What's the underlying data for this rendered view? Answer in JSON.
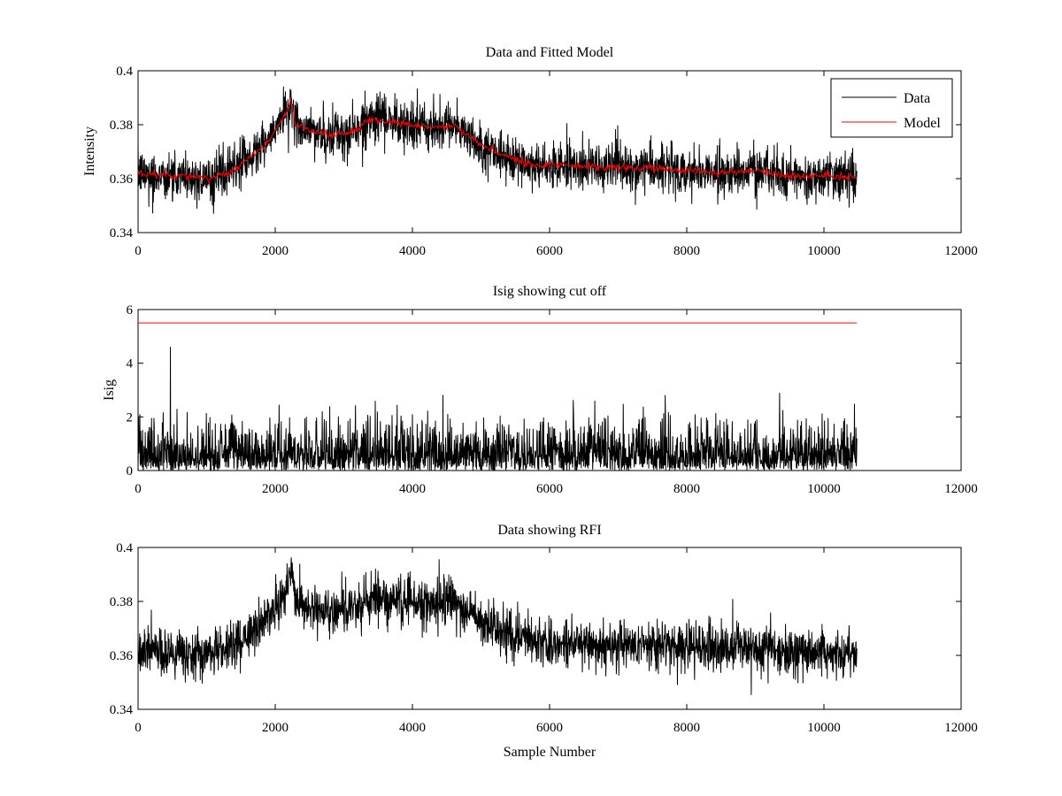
{
  "chart_data": [
    {
      "type": "line",
      "title": "Data and Fitted Model",
      "xlabel": "",
      "ylabel": "Intensity",
      "xlim": [
        0,
        12000
      ],
      "ylim": [
        0.34,
        0.4
      ],
      "xticks": [
        0,
        2000,
        4000,
        6000,
        8000,
        10000,
        12000
      ],
      "xtick_labels": [
        "0",
        "2000",
        "4000",
        "6000",
        "8000",
        "10000",
        "12000"
      ],
      "yticks": [
        0.34,
        0.36,
        0.38,
        0.4
      ],
      "ytick_labels": [
        "0.34",
        "0.36",
        "0.38",
        "0.4"
      ],
      "grid": false,
      "legend": "top-right",
      "series": [
        {
          "name": "Data",
          "color": "#000000",
          "noise": 0.004,
          "spike_rate": 0.05,
          "spike_amp": 0.007,
          "x": [
            0,
            500,
            1000,
            1300,
            1600,
            1900,
            2100,
            2230,
            2300,
            2500,
            2800,
            3100,
            3400,
            3700,
            4000,
            4300,
            4600,
            4900,
            5200,
            5500,
            5800,
            6100,
            6400,
            6700,
            7000,
            7500,
            8000,
            8500,
            9000,
            9500,
            10000,
            10480
          ],
          "y": [
            0.362,
            0.361,
            0.36,
            0.362,
            0.367,
            0.374,
            0.382,
            0.389,
            0.38,
            0.378,
            0.376,
            0.377,
            0.382,
            0.381,
            0.38,
            0.379,
            0.38,
            0.374,
            0.37,
            0.367,
            0.365,
            0.365,
            0.365,
            0.364,
            0.364,
            0.364,
            0.363,
            0.362,
            0.363,
            0.361,
            0.361,
            0.361
          ]
        },
        {
          "name": "Model",
          "color": "#ff0000",
          "noise": 0.0007,
          "x": [
            0,
            500,
            1000,
            1300,
            1600,
            1900,
            2100,
            2230,
            2300,
            2500,
            2800,
            3100,
            3400,
            3700,
            4000,
            4300,
            4600,
            4900,
            5200,
            5500,
            5800,
            6100,
            6400,
            6700,
            7000,
            7500,
            8000,
            8500,
            9000,
            9500,
            10000,
            10480
          ],
          "y": [
            0.362,
            0.361,
            0.36,
            0.362,
            0.367,
            0.374,
            0.382,
            0.389,
            0.38,
            0.378,
            0.376,
            0.377,
            0.382,
            0.381,
            0.38,
            0.379,
            0.38,
            0.374,
            0.37,
            0.367,
            0.365,
            0.365,
            0.365,
            0.364,
            0.364,
            0.364,
            0.363,
            0.362,
            0.363,
            0.361,
            0.361,
            0.36
          ]
        }
      ]
    },
    {
      "type": "line",
      "title": "Isig showing cut off",
      "xlabel": "",
      "ylabel": "Isig",
      "xlim": [
        0,
        12000
      ],
      "ylim": [
        0,
        6
      ],
      "xticks": [
        0,
        2000,
        4000,
        6000,
        8000,
        10000,
        12000
      ],
      "xtick_labels": [
        "0",
        "2000",
        "4000",
        "6000",
        "8000",
        "10000",
        "12000"
      ],
      "yticks": [
        0,
        2,
        4,
        6
      ],
      "ytick_labels": [
        "0",
        "2",
        "4",
        "6"
      ],
      "grid": false,
      "series": [
        {
          "color": "#000000",
          "distribution": "abs-normal",
          "sigma": 0.85,
          "peak": {
            "x": 470,
            "y": 4.6
          },
          "x": [
            0,
            10480
          ],
          "y": [
            0,
            0
          ]
        },
        {
          "color": "#ff0000",
          "x": [
            0,
            10480
          ],
          "y": [
            5.5,
            5.5
          ]
        }
      ]
    },
    {
      "type": "line",
      "title": "Data showing RFI",
      "xlabel": "Sample Number",
      "ylabel": "",
      "xlim": [
        0,
        12000
      ],
      "ylim": [
        0.34,
        0.4
      ],
      "xticks": [
        0,
        2000,
        4000,
        6000,
        8000,
        10000,
        12000
      ],
      "xtick_labels": [
        "0",
        "2000",
        "4000",
        "6000",
        "8000",
        "10000",
        "12000"
      ],
      "yticks": [
        0.34,
        0.36,
        0.38,
        0.4
      ],
      "ytick_labels": [
        "0.34",
        "0.36",
        "0.38",
        "0.4"
      ],
      "grid": false,
      "series": [
        {
          "color": "#000000",
          "noise": 0.004,
          "spike_rate": 0.05,
          "spike_amp": 0.007,
          "x": [
            0,
            500,
            1000,
            1300,
            1600,
            1900,
            2100,
            2230,
            2300,
            2500,
            2800,
            3100,
            3400,
            3700,
            4000,
            4300,
            4600,
            4900,
            5200,
            5500,
            5800,
            6100,
            6400,
            6700,
            7000,
            7500,
            8000,
            8500,
            9000,
            9500,
            10000,
            10480
          ],
          "y": [
            0.362,
            0.361,
            0.36,
            0.362,
            0.367,
            0.374,
            0.382,
            0.389,
            0.38,
            0.378,
            0.376,
            0.377,
            0.382,
            0.381,
            0.38,
            0.379,
            0.38,
            0.374,
            0.37,
            0.367,
            0.365,
            0.365,
            0.365,
            0.364,
            0.364,
            0.364,
            0.363,
            0.362,
            0.363,
            0.361,
            0.361,
            0.361
          ]
        }
      ]
    }
  ]
}
